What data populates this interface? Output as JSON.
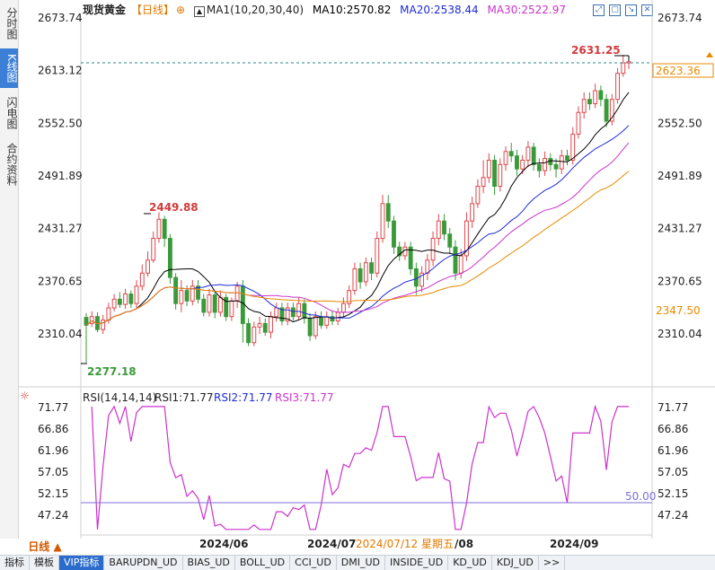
{
  "sidebar": {
    "tabs": [
      {
        "label": "分时图",
        "active": false
      },
      {
        "label": "K线图",
        "active": true
      },
      {
        "label": "闪电图",
        "active": false
      },
      {
        "label": "合约资料",
        "active": false
      }
    ]
  },
  "header": {
    "instrument": "现货黄金",
    "period": "【日线】",
    "ma_label": "MA1(10,20,30,40)",
    "ma10": "MA10:2570.82",
    "ma20": "MA20:2538.44",
    "ma30": "MA30:2522.97"
  },
  "price_axis": {
    "ticks": [
      "2673.74",
      "2613.12",
      "2552.50",
      "2491.89",
      "2431.27",
      "2370.65",
      "2310.04"
    ],
    "current_price": "2623.36",
    "ma_marker": "2347.50"
  },
  "annotations": {
    "high": "2631.25",
    "swing_high": "2449.88",
    "low": "2277.18"
  },
  "rsi": {
    "label": "RSI(14,14,14)",
    "rsi1": "RSI1:71.77",
    "rsi2": "RSI2:71.77",
    "rsi3": "RSI3:71.77",
    "ticks": [
      "71.77",
      "66.86",
      "61.96",
      "57.05",
      "52.15",
      "47.24"
    ],
    "reference_label": "50.00"
  },
  "time_axis": {
    "labels": [
      "2024/06",
      "2024/07",
      "2024/08",
      "2024/09"
    ],
    "cursor": "2024/07/12 星期五"
  },
  "period_button": "日线 ▲",
  "bottom_tabs": [
    "指标",
    "模板",
    "VIP指标",
    "BARUPDN_UD",
    "BIAS_UD",
    "BOLL_UD",
    "CCI_UD",
    "DMI_UD",
    "INSIDE_UD",
    "KD_UD",
    "KDJ_UD",
    ">>"
  ],
  "colors": {
    "up": "#e0474c",
    "down": "#3a9a3a",
    "ma10": "#000000",
    "ma20": "#1f2bd6",
    "ma30": "#cc33cc",
    "ma40": "#e88a00",
    "rsi": "#cc33cc"
  },
  "icons": [
    "expand-icon",
    "restore-icon",
    "download-icon",
    "close-icon"
  ],
  "chart_data": {
    "type": "candlestick",
    "title": "现货黄金 【日线】",
    "ylim": [
      2277.18,
      2673.74
    ],
    "candles": [
      [
        2329,
        2320,
        2334,
        2277
      ],
      [
        2322,
        2330,
        2336,
        2318
      ],
      [
        2330,
        2315,
        2335,
        2312
      ],
      [
        2315,
        2326,
        2332,
        2310
      ],
      [
        2326,
        2340,
        2346,
        2322
      ],
      [
        2340,
        2350,
        2356,
        2336
      ],
      [
        2350,
        2344,
        2358,
        2340
      ],
      [
        2344,
        2356,
        2362,
        2339
      ],
      [
        2356,
        2345,
        2360,
        2340
      ],
      [
        2345,
        2365,
        2372,
        2340
      ],
      [
        2365,
        2380,
        2390,
        2360
      ],
      [
        2380,
        2395,
        2405,
        2376
      ],
      [
        2395,
        2420,
        2428,
        2392
      ],
      [
        2420,
        2442,
        2450,
        2415
      ],
      [
        2442,
        2420,
        2446,
        2410
      ],
      [
        2420,
        2375,
        2425,
        2368
      ],
      [
        2375,
        2345,
        2380,
        2338
      ],
      [
        2345,
        2360,
        2372,
        2335
      ],
      [
        2360,
        2348,
        2366,
        2342
      ],
      [
        2348,
        2365,
        2372,
        2343
      ],
      [
        2365,
        2350,
        2372,
        2345
      ],
      [
        2350,
        2335,
        2356,
        2330
      ],
      [
        2335,
        2355,
        2362,
        2330
      ],
      [
        2355,
        2335,
        2360,
        2328
      ],
      [
        2335,
        2352,
        2360,
        2330
      ],
      [
        2352,
        2330,
        2356,
        2325
      ],
      [
        2330,
        2348,
        2352,
        2325
      ],
      [
        2348,
        2365,
        2370,
        2340
      ],
      [
        2365,
        2322,
        2372,
        2300
      ],
      [
        2322,
        2300,
        2328,
        2296
      ],
      [
        2300,
        2318,
        2324,
        2296
      ],
      [
        2318,
        2322,
        2330,
        2310
      ],
      [
        2322,
        2312,
        2328,
        2308
      ],
      [
        2312,
        2330,
        2336,
        2305
      ],
      [
        2330,
        2340,
        2346,
        2324
      ],
      [
        2340,
        2325,
        2346,
        2320
      ],
      [
        2325,
        2340,
        2346,
        2320
      ],
      [
        2340,
        2330,
        2346,
        2325
      ],
      [
        2330,
        2345,
        2352,
        2326
      ],
      [
        2345,
        2328,
        2350,
        2322
      ],
      [
        2328,
        2308,
        2334,
        2302
      ],
      [
        2308,
        2330,
        2336,
        2304
      ],
      [
        2330,
        2320,
        2336,
        2316
      ],
      [
        2320,
        2330,
        2336,
        2316
      ],
      [
        2330,
        2325,
        2336,
        2320
      ],
      [
        2325,
        2335,
        2340,
        2320
      ],
      [
        2335,
        2345,
        2352,
        2330
      ],
      [
        2345,
        2360,
        2366,
        2340
      ],
      [
        2360,
        2385,
        2392,
        2355
      ],
      [
        2385,
        2370,
        2392,
        2362
      ],
      [
        2370,
        2392,
        2398,
        2365
      ],
      [
        2392,
        2380,
        2398,
        2372
      ],
      [
        2380,
        2420,
        2428,
        2375
      ],
      [
        2420,
        2460,
        2470,
        2415
      ],
      [
        2460,
        2440,
        2470,
        2432
      ],
      [
        2440,
        2410,
        2446,
        2402
      ],
      [
        2410,
        2400,
        2416,
        2394
      ],
      [
        2400,
        2410,
        2416,
        2395
      ],
      [
        2410,
        2385,
        2416,
        2378
      ],
      [
        2385,
        2365,
        2392,
        2355
      ],
      [
        2365,
        2380,
        2388,
        2358
      ],
      [
        2380,
        2395,
        2402,
        2372
      ],
      [
        2395,
        2420,
        2428,
        2388
      ],
      [
        2420,
        2440,
        2448,
        2412
      ],
      [
        2440,
        2425,
        2448,
        2418
      ],
      [
        2425,
        2410,
        2432,
        2402
      ],
      [
        2410,
        2380,
        2418,
        2372
      ],
      [
        2380,
        2400,
        2408,
        2374
      ],
      [
        2400,
        2440,
        2450,
        2394
      ],
      [
        2440,
        2460,
        2468,
        2432
      ],
      [
        2460,
        2480,
        2488,
        2455
      ],
      [
        2480,
        2490,
        2510,
        2472
      ],
      [
        2490,
        2510,
        2518,
        2484
      ],
      [
        2510,
        2480,
        2516,
        2470
      ],
      [
        2480,
        2505,
        2512,
        2474
      ],
      [
        2505,
        2520,
        2526,
        2498
      ],
      [
        2520,
        2515,
        2530,
        2508
      ],
      [
        2515,
        2500,
        2522,
        2492
      ],
      [
        2500,
        2510,
        2516,
        2494
      ],
      [
        2510,
        2525,
        2532,
        2502
      ],
      [
        2525,
        2505,
        2530,
        2498
      ],
      [
        2505,
        2498,
        2512,
        2490
      ],
      [
        2498,
        2512,
        2520,
        2492
      ],
      [
        2512,
        2505,
        2518,
        2498
      ],
      [
        2505,
        2500,
        2512,
        2490
      ],
      [
        2500,
        2515,
        2522,
        2494
      ],
      [
        2515,
        2510,
        2522,
        2504
      ],
      [
        2510,
        2540,
        2548,
        2505
      ],
      [
        2540,
        2565,
        2572,
        2535
      ],
      [
        2565,
        2580,
        2588,
        2558
      ],
      [
        2580,
        2575,
        2588,
        2568
      ],
      [
        2575,
        2590,
        2598,
        2570
      ],
      [
        2590,
        2580,
        2596,
        2572
      ],
      [
        2580,
        2555,
        2586,
        2548
      ],
      [
        2555,
        2580,
        2586,
        2550
      ],
      [
        2580,
        2610,
        2616,
        2575
      ],
      [
        2610,
        2622,
        2631.25,
        2606
      ],
      [
        2622,
        2623.36,
        2628,
        2615
      ]
    ]
  }
}
